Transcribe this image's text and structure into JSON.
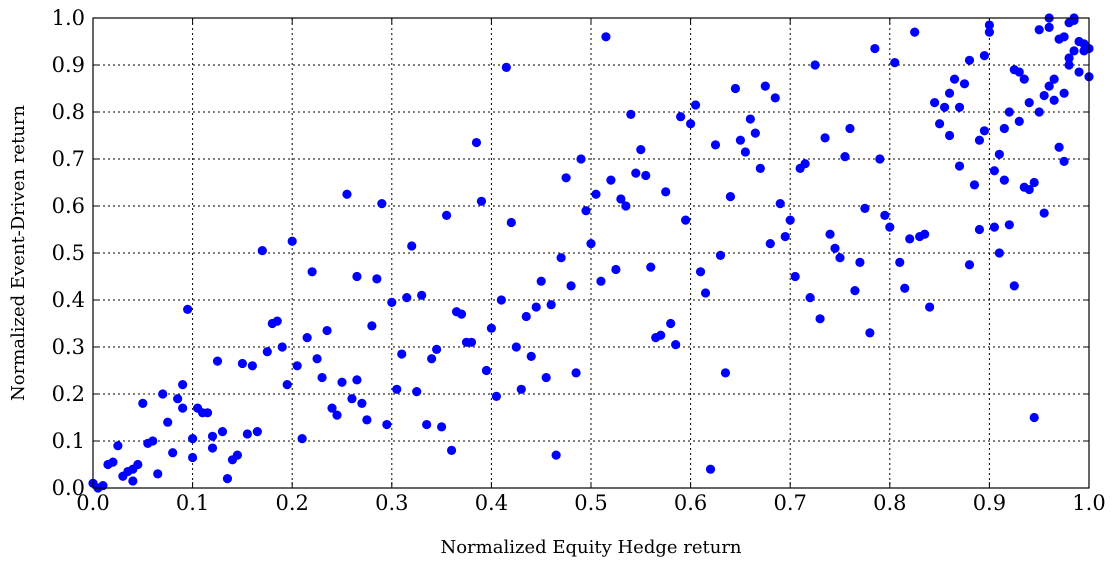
{
  "chart_data": {
    "type": "scatter",
    "xlabel": "Normalized Equity Hedge return",
    "ylabel": "Normalized Event-Driven return",
    "xlim": [
      0,
      1
    ],
    "ylim": [
      0,
      1
    ],
    "grid": true,
    "point_color": "#0000ff",
    "x_ticks": [
      "0.0",
      "0.1",
      "0.2",
      "0.3",
      "0.4",
      "0.5",
      "0.6",
      "0.7",
      "0.8",
      "0.9",
      "1.0"
    ],
    "y_ticks": [
      "0.0",
      "0.1",
      "0.2",
      "0.3",
      "0.4",
      "0.5",
      "0.6",
      "0.7",
      "0.8",
      "0.9",
      "1.0"
    ],
    "points": [
      [
        0.0,
        0.01
      ],
      [
        0.005,
        0.0
      ],
      [
        0.01,
        0.005
      ],
      [
        0.015,
        0.05
      ],
      [
        0.02,
        0.055
      ],
      [
        0.025,
        0.09
      ],
      [
        0.03,
        0.025
      ],
      [
        0.035,
        0.035
      ],
      [
        0.04,
        0.04
      ],
      [
        0.04,
        0.015
      ],
      [
        0.045,
        0.05
      ],
      [
        0.05,
        0.18
      ],
      [
        0.055,
        0.095
      ],
      [
        0.06,
        0.1
      ],
      [
        0.065,
        0.03
      ],
      [
        0.07,
        0.2
      ],
      [
        0.075,
        0.14
      ],
      [
        0.08,
        0.075
      ],
      [
        0.085,
        0.19
      ],
      [
        0.09,
        0.17
      ],
      [
        0.09,
        0.22
      ],
      [
        0.095,
        0.38
      ],
      [
        0.1,
        0.065
      ],
      [
        0.1,
        0.105
      ],
      [
        0.105,
        0.17
      ],
      [
        0.11,
        0.16
      ],
      [
        0.115,
        0.16
      ],
      [
        0.12,
        0.11
      ],
      [
        0.12,
        0.085
      ],
      [
        0.125,
        0.27
      ],
      [
        0.13,
        0.12
      ],
      [
        0.135,
        0.02
      ],
      [
        0.14,
        0.06
      ],
      [
        0.145,
        0.07
      ],
      [
        0.15,
        0.265
      ],
      [
        0.155,
        0.115
      ],
      [
        0.16,
        0.26
      ],
      [
        0.165,
        0.12
      ],
      [
        0.17,
        0.505
      ],
      [
        0.175,
        0.29
      ],
      [
        0.18,
        0.35
      ],
      [
        0.185,
        0.355
      ],
      [
        0.19,
        0.3
      ],
      [
        0.195,
        0.22
      ],
      [
        0.2,
        0.525
      ],
      [
        0.205,
        0.26
      ],
      [
        0.21,
        0.105
      ],
      [
        0.215,
        0.32
      ],
      [
        0.22,
        0.46
      ],
      [
        0.225,
        0.275
      ],
      [
        0.23,
        0.235
      ],
      [
        0.235,
        0.335
      ],
      [
        0.24,
        0.17
      ],
      [
        0.245,
        0.155
      ],
      [
        0.25,
        0.225
      ],
      [
        0.255,
        0.625
      ],
      [
        0.26,
        0.19
      ],
      [
        0.265,
        0.23
      ],
      [
        0.265,
        0.45
      ],
      [
        0.27,
        0.18
      ],
      [
        0.275,
        0.145
      ],
      [
        0.28,
        0.345
      ],
      [
        0.285,
        0.445
      ],
      [
        0.29,
        0.605
      ],
      [
        0.295,
        0.135
      ],
      [
        0.3,
        0.395
      ],
      [
        0.305,
        0.21
      ],
      [
        0.31,
        0.285
      ],
      [
        0.315,
        0.405
      ],
      [
        0.32,
        0.515
      ],
      [
        0.325,
        0.205
      ],
      [
        0.33,
        0.41
      ],
      [
        0.335,
        0.135
      ],
      [
        0.34,
        0.275
      ],
      [
        0.345,
        0.295
      ],
      [
        0.35,
        0.13
      ],
      [
        0.355,
        0.58
      ],
      [
        0.36,
        0.08
      ],
      [
        0.365,
        0.375
      ],
      [
        0.37,
        0.37
      ],
      [
        0.375,
        0.31
      ],
      [
        0.38,
        0.31
      ],
      [
        0.385,
        0.735
      ],
      [
        0.39,
        0.61
      ],
      [
        0.395,
        0.25
      ],
      [
        0.4,
        0.34
      ],
      [
        0.405,
        0.195
      ],
      [
        0.41,
        0.4
      ],
      [
        0.415,
        0.895
      ],
      [
        0.42,
        0.565
      ],
      [
        0.425,
        0.3
      ],
      [
        0.43,
        0.21
      ],
      [
        0.435,
        0.365
      ],
      [
        0.44,
        0.28
      ],
      [
        0.445,
        0.385
      ],
      [
        0.45,
        0.44
      ],
      [
        0.455,
        0.235
      ],
      [
        0.46,
        0.39
      ],
      [
        0.465,
        0.07
      ],
      [
        0.47,
        0.49
      ],
      [
        0.475,
        0.66
      ],
      [
        0.48,
        0.43
      ],
      [
        0.485,
        0.245
      ],
      [
        0.49,
        0.7
      ],
      [
        0.495,
        0.59
      ],
      [
        0.5,
        0.52
      ],
      [
        0.505,
        0.625
      ],
      [
        0.51,
        0.44
      ],
      [
        0.515,
        0.96
      ],
      [
        0.52,
        0.655
      ],
      [
        0.525,
        0.465
      ],
      [
        0.53,
        0.615
      ],
      [
        0.535,
        0.6
      ],
      [
        0.54,
        0.795
      ],
      [
        0.545,
        0.67
      ],
      [
        0.55,
        0.72
      ],
      [
        0.555,
        0.665
      ],
      [
        0.56,
        0.47
      ],
      [
        0.565,
        0.32
      ],
      [
        0.57,
        0.325
      ],
      [
        0.575,
        0.63
      ],
      [
        0.58,
        0.35
      ],
      [
        0.585,
        0.305
      ],
      [
        0.59,
        0.79
      ],
      [
        0.595,
        0.57
      ],
      [
        0.6,
        0.775
      ],
      [
        0.605,
        0.815
      ],
      [
        0.61,
        0.46
      ],
      [
        0.615,
        0.415
      ],
      [
        0.62,
        0.04
      ],
      [
        0.625,
        0.73
      ],
      [
        0.63,
        0.495
      ],
      [
        0.635,
        0.245
      ],
      [
        0.64,
        0.62
      ],
      [
        0.645,
        0.85
      ],
      [
        0.65,
        0.74
      ],
      [
        0.655,
        0.715
      ],
      [
        0.66,
        0.785
      ],
      [
        0.665,
        0.755
      ],
      [
        0.67,
        0.68
      ],
      [
        0.675,
        0.855
      ],
      [
        0.68,
        0.52
      ],
      [
        0.685,
        0.83
      ],
      [
        0.69,
        0.605
      ],
      [
        0.695,
        0.535
      ],
      [
        0.7,
        0.57
      ],
      [
        0.705,
        0.45
      ],
      [
        0.71,
        0.68
      ],
      [
        0.715,
        0.69
      ],
      [
        0.72,
        0.405
      ],
      [
        0.725,
        0.9
      ],
      [
        0.73,
        0.36
      ],
      [
        0.735,
        0.745
      ],
      [
        0.74,
        0.54
      ],
      [
        0.745,
        0.51
      ],
      [
        0.75,
        0.49
      ],
      [
        0.755,
        0.705
      ],
      [
        0.76,
        0.765
      ],
      [
        0.765,
        0.42
      ],
      [
        0.77,
        0.48
      ],
      [
        0.775,
        0.595
      ],
      [
        0.78,
        0.33
      ],
      [
        0.785,
        0.935
      ],
      [
        0.79,
        0.7
      ],
      [
        0.795,
        0.58
      ],
      [
        0.8,
        0.555
      ],
      [
        0.805,
        0.905
      ],
      [
        0.81,
        0.48
      ],
      [
        0.815,
        0.425
      ],
      [
        0.82,
        0.53
      ],
      [
        0.825,
        0.97
      ],
      [
        0.83,
        0.535
      ],
      [
        0.835,
        0.54
      ],
      [
        0.84,
        0.385
      ],
      [
        0.845,
        0.82
      ],
      [
        0.85,
        0.775
      ],
      [
        0.855,
        0.81
      ],
      [
        0.86,
        0.75
      ],
      [
        0.865,
        0.87
      ],
      [
        0.87,
        0.685
      ],
      [
        0.875,
        0.86
      ],
      [
        0.88,
        0.475
      ],
      [
        0.885,
        0.645
      ],
      [
        0.89,
        0.55
      ],
      [
        0.895,
        0.76
      ],
      [
        0.9,
        0.985
      ],
      [
        0.905,
        0.675
      ],
      [
        0.91,
        0.5
      ],
      [
        0.915,
        0.765
      ],
      [
        0.92,
        0.8
      ],
      [
        0.925,
        0.89
      ],
      [
        0.93,
        0.78
      ],
      [
        0.935,
        0.64
      ],
      [
        0.94,
        0.82
      ],
      [
        0.945,
        0.15
      ],
      [
        0.95,
        0.8
      ],
      [
        0.955,
        0.585
      ],
      [
        0.96,
        0.855
      ],
      [
        0.965,
        0.87
      ],
      [
        0.97,
        0.955
      ],
      [
        0.975,
        0.96
      ],
      [
        0.98,
        0.9
      ],
      [
        0.985,
        1.0
      ],
      [
        0.99,
        0.885
      ],
      [
        0.995,
        0.945
      ],
      [
        1.0,
        0.875
      ],
      [
        0.86,
        0.84
      ],
      [
        0.87,
        0.81
      ],
      [
        0.88,
        0.91
      ],
      [
        0.89,
        0.74
      ],
      [
        0.895,
        0.92
      ],
      [
        0.9,
        0.97
      ],
      [
        0.905,
        0.555
      ],
      [
        0.91,
        0.71
      ],
      [
        0.915,
        0.655
      ],
      [
        0.92,
        0.56
      ],
      [
        0.925,
        0.43
      ],
      [
        0.93,
        0.885
      ],
      [
        0.935,
        0.87
      ],
      [
        0.94,
        0.635
      ],
      [
        0.945,
        0.65
      ],
      [
        0.95,
        0.975
      ],
      [
        0.955,
        0.835
      ],
      [
        0.96,
        0.98
      ],
      [
        0.965,
        0.825
      ],
      [
        0.97,
        0.725
      ],
      [
        0.975,
        0.84
      ],
      [
        0.98,
        0.915
      ],
      [
        0.985,
        0.995
      ],
      [
        0.99,
        0.95
      ],
      [
        0.995,
        0.93
      ],
      [
        1.0,
        0.935
      ],
      [
        0.975,
        0.695
      ],
      [
        0.96,
        1.0
      ],
      [
        0.98,
        0.99
      ],
      [
        0.985,
        0.93
      ]
    ]
  }
}
